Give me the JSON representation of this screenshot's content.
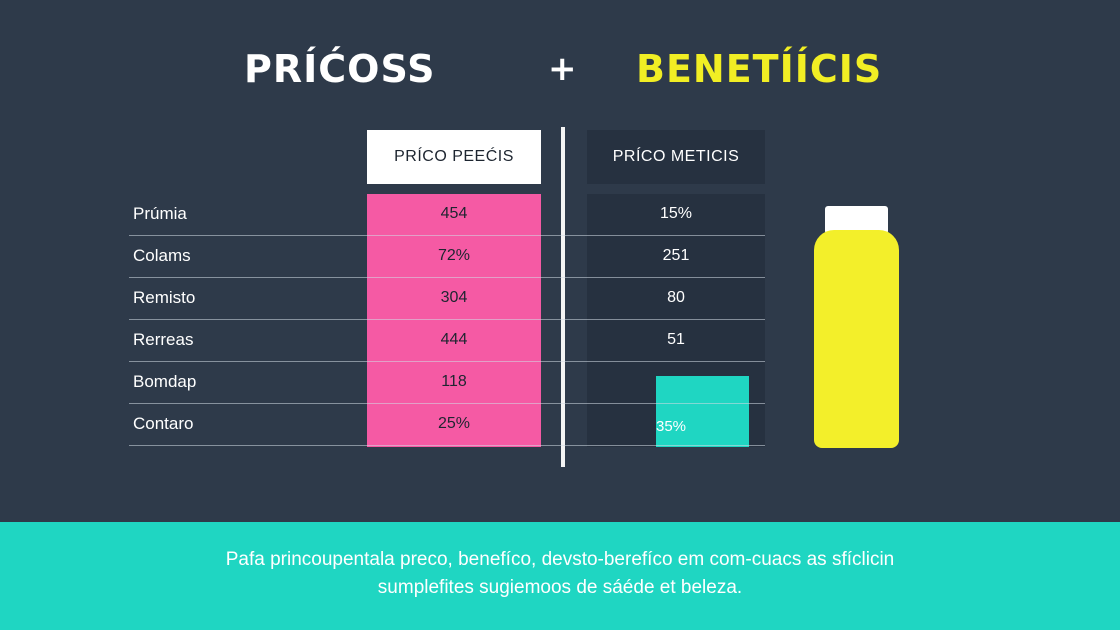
{
  "header": {
    "title_left": "PRÍĆOSS",
    "plus": "+",
    "title_right": "BENETÍÍCIS"
  },
  "table": {
    "price_header": "PRÍCO PEEĆIS",
    "benefit_header": "PRÍCO METICIS",
    "rows": [
      {
        "label": "Prúmia",
        "price": "454",
        "benefit": "15%"
      },
      {
        "label": "Colams",
        "price": "72%",
        "benefit": "251"
      },
      {
        "label": "Remisto",
        "price": "304",
        "benefit": "80"
      },
      {
        "label": "Rerreas",
        "price": "444",
        "benefit": "51"
      },
      {
        "label": "Bomdap",
        "price": "118",
        "benefit": ""
      },
      {
        "label": "Contaro",
        "price": "25%",
        "benefit": "35%"
      }
    ]
  },
  "colors": {
    "background": "#2e3a4a",
    "price_column": "#f55aa4",
    "highlight": "#1fd6c2",
    "accent_yellow": "#f1ee24"
  },
  "icons": {
    "bottle": "bottle-icon"
  },
  "footer": {
    "line1": "Pafa princoupentala preco, benefíco, devsto-berefíco em com-cuacs as sfíclicin",
    "line2": "sumplefites sugiemoos de sáéde et beleza."
  }
}
